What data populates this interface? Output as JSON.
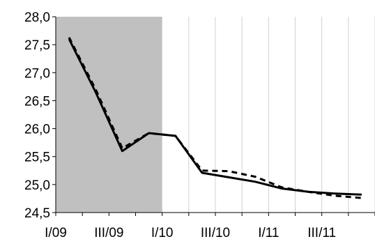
{
  "chart_data": {
    "type": "line",
    "title": "",
    "xlabel": "",
    "ylabel": "",
    "ylim": [
      24.5,
      28.0
    ],
    "y_ticks": [
      24.5,
      25.0,
      25.5,
      26.0,
      26.5,
      27.0,
      27.5,
      28.0
    ],
    "y_tick_labels": [
      "24,5",
      "25,0",
      "25,5",
      "26,0",
      "26,5",
      "27,0",
      "27,5",
      "28,0"
    ],
    "x_periods": [
      "I/09",
      "II/09",
      "III/09",
      "IV/09",
      "I/10",
      "II/10",
      "III/10",
      "IV/10",
      "I/11",
      "II/11",
      "III/11",
      "IV/11"
    ],
    "x_tick_labels": [
      "I/09",
      "III/09",
      "I/10",
      "III/10",
      "I/11",
      "III/11"
    ],
    "shaded_period_range": [
      "I/09",
      "I/10"
    ],
    "shaded_color": "#c0c0c0",
    "grid": "vertical",
    "legend": "none",
    "series": [
      {
        "style": "solid",
        "color": "#000000",
        "values": [
          27.6,
          26.65,
          25.6,
          25.92,
          25.87,
          25.21,
          25.13,
          25.05,
          24.93,
          24.87,
          24.84,
          24.82
        ]
      },
      {
        "style": "dashed",
        "color": "#000000",
        "values": [
          27.63,
          26.7,
          25.65,
          25.92,
          25.87,
          25.25,
          25.24,
          25.14,
          24.95,
          24.87,
          24.8,
          24.76
        ]
      }
    ]
  }
}
